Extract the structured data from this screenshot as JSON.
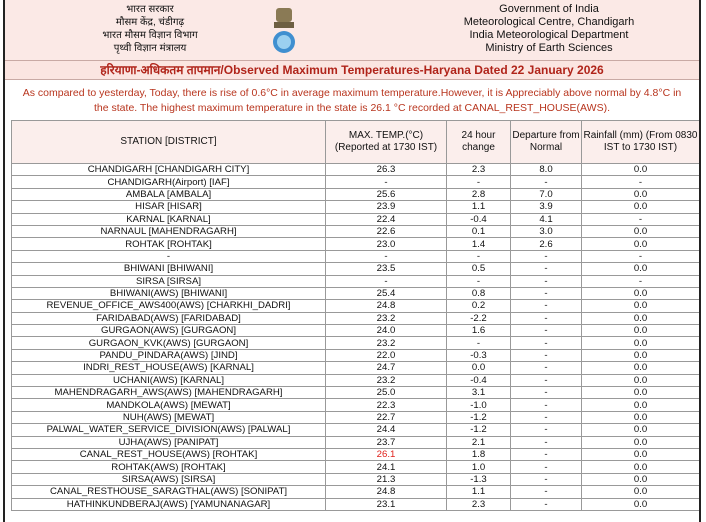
{
  "header": {
    "hindi_lines": [
      "भारत सरकार",
      "मौसम केंद्र, चंडीगढ़",
      "भारत मौसम विज्ञान विभाग",
      "पृथ्वी विज्ञान मंत्रालय"
    ],
    "english_lines": [
      "Government of India",
      "Meteorological Centre, Chandigarh",
      "India Meteorological Department",
      "Ministry of Earth Sciences"
    ],
    "title": "हरियाणा-अधिकतम तापमान/Observed Maximum Temperatures-Haryana Dated 22 January 2026"
  },
  "summary": "As compared to yesterday, Today, there is rise of 0.6°C in average maximum temperature.However, it is Appreciably above normal by 4.8°C in the state. The highest maximum temperature in the state is 26.1 °C recorded at CANAL_REST_HOUSE(AWS).",
  "table": {
    "columns": [
      "STATION [DISTRICT]",
      "MAX. TEMP.(°C) (Reported at 1730 IST)",
      "24 hour change",
      "Departure from Normal",
      "Rainfall (mm) (From 0830 IST to 1730 IST)"
    ],
    "highlight": {
      "row": 23,
      "column": 1,
      "color": "#e0201a"
    },
    "rows": [
      [
        "CHANDIGARH  [CHANDIGARH CITY]",
        "26.3",
        "2.3",
        "8.0",
        "0.0"
      ],
      [
        "CHANDIGARH(Airport)  [IAF]",
        "-",
        "-",
        "-",
        "-"
      ],
      [
        "AMBALA  [AMBALA]",
        "25.6",
        "2.8",
        "7.0",
        "0.0"
      ],
      [
        "HISAR  [HISAR]",
        "23.9",
        "1.1",
        "3.9",
        "0.0"
      ],
      [
        "KARNAL  [KARNAL]",
        "22.4",
        "-0.4",
        "4.1",
        "-"
      ],
      [
        "NARNAUL  [MAHENDRAGARH]",
        "22.6",
        "0.1",
        "3.0",
        "0.0"
      ],
      [
        "ROHTAK  [ROHTAK]",
        "23.0",
        "1.4",
        "2.6",
        "0.0"
      ],
      [
        "-",
        "-",
        "-",
        "-",
        "-"
      ],
      [
        "BHIWANI  [BHIWANI]",
        "23.5",
        "0.5",
        "-",
        "0.0"
      ],
      [
        "SIRSA  [SIRSA]",
        "-",
        "-",
        "-",
        "-"
      ],
      [
        "BHIWANI(AWS)  [BHIWANI]",
        "25.4",
        "0.8",
        "-",
        "0.0"
      ],
      [
        "REVENUE_OFFICE_AWS400(AWS)  [CHARKHI_DADRI]",
        "24.8",
        "0.2",
        "-",
        "0.0"
      ],
      [
        "FARIDABAD(AWS)  [FARIDABAD]",
        "23.2",
        "-2.2",
        "-",
        "0.0"
      ],
      [
        "GURGAON(AWS)  [GURGAON]",
        "24.0",
        "1.6",
        "-",
        "0.0"
      ],
      [
        "GURGAON_KVK(AWS)  [GURGAON]",
        "23.2",
        "-",
        "-",
        "0.0"
      ],
      [
        "PANDU_PINDARA(AWS)  [JIND]",
        "22.0",
        "-0.3",
        "-",
        "0.0"
      ],
      [
        "INDRI_REST_HOUSE(AWS)  [KARNAL]",
        "24.7",
        "0.0",
        "-",
        "0.0"
      ],
      [
        "UCHANI(AWS)  [KARNAL]",
        "23.2",
        "-0.4",
        "-",
        "0.0"
      ],
      [
        "MAHENDRAGARH_AWS(AWS)  [MAHENDRAGARH]",
        "25.0",
        "3.1",
        "-",
        "0.0"
      ],
      [
        "MANDKOLA(AWS)  [MEWAT]",
        "22.3",
        "-1.0",
        "-",
        "0.0"
      ],
      [
        "NUH(AWS)  [MEWAT]",
        "22.7",
        "-1.2",
        "-",
        "0.0"
      ],
      [
        "PALWAL_WATER_SERVICE_DIVISION(AWS)  [PALWAL]",
        "24.4",
        "-1.2",
        "-",
        "0.0"
      ],
      [
        "UJHA(AWS)  [PANIPAT]",
        "23.7",
        "2.1",
        "-",
        "0.0"
      ],
      [
        "CANAL_REST_HOUSE(AWS)  [ROHTAK]",
        "26.1",
        "1.8",
        "-",
        "0.0"
      ],
      [
        "ROHTAK(AWS)  [ROHTAK]",
        "24.1",
        "1.0",
        "-",
        "0.0"
      ],
      [
        "SIRSA(AWS)  [SIRSA]",
        "21.3",
        "-1.3",
        "-",
        "0.0"
      ],
      [
        "CANAL_RESTHOUSE_SARAGTHAL(AWS)  [SONIPAT]",
        "24.8",
        "1.1",
        "-",
        "0.0"
      ],
      [
        "HATHINKUNDBERAJ(AWS)  [YAMUNANAGAR]",
        "23.1",
        "2.3",
        "-",
        "0.0"
      ]
    ]
  }
}
